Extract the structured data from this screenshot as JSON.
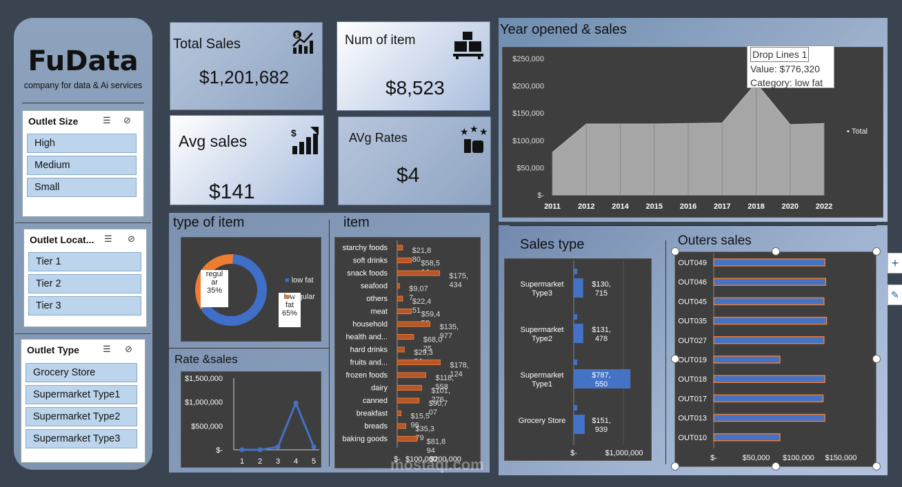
{
  "brand": {
    "name": "FuData",
    "tagline": "company for data & Ai services"
  },
  "slicers": {
    "size": {
      "title": "Outlet Size",
      "items": [
        "High",
        "Medium",
        "Small"
      ]
    },
    "location": {
      "title": "Outlet Locat...",
      "items": [
        "Tier 1",
        "Tier 2",
        "Tier 3"
      ]
    },
    "type": {
      "title": "Outlet Type",
      "items": [
        "Grocery Store",
        "Supermarket Type1",
        "Supermarket Type2",
        "Supermarket Type3"
      ]
    }
  },
  "kpis": {
    "total_sales": {
      "title": "Total Sales",
      "value": "$1,201,682",
      "icon": "sales-chart-icon"
    },
    "num_item": {
      "title": "Num of item",
      "value": "$8,523",
      "icon": "boxes-icon"
    },
    "avg_sales": {
      "title": "Avg sales",
      "value": "$141",
      "icon": "growth-icon"
    },
    "avg_rates": {
      "title": "AVg Rates",
      "value": "$4",
      "icon": "rating-icon"
    }
  },
  "year_chart": {
    "title": "Year opened & sales",
    "legend": "Total",
    "tooltip": {
      "line1": "Drop Lines 1",
      "line2": "Value:  $776,320",
      "line3": "Category: low fat"
    }
  },
  "type_chart": {
    "title": "type of item",
    "label_regular": "regul\nar\n35%",
    "label_low": "low\nfat\n65%",
    "legend_low": "low fat",
    "legend_regular": "regular"
  },
  "rate_chart": {
    "title": "Rate &sales"
  },
  "item_chart": {
    "title": "item"
  },
  "sales_type_chart": {
    "title": "Sales type"
  },
  "outers_chart": {
    "title": "Outers sales"
  },
  "watermark": {
    "text": "mostaql.com"
  },
  "chart_data": [
    {
      "type": "area",
      "title": "Year opened & sales",
      "categories": [
        "2011",
        "2012",
        "2014",
        "2015",
        "2016",
        "2017",
        "2018",
        "2020",
        "2022"
      ],
      "series": [
        {
          "name": "Total",
          "values": [
            78000,
            130000,
            130000,
            130000,
            131000,
            132000,
            205000,
            129000,
            131000
          ]
        }
      ],
      "yticks": [
        "$250,000",
        "$200,000",
        "$150,000",
        "$100,000",
        "$50,000",
        "$-"
      ],
      "ylim": [
        0,
        250000
      ],
      "legend": "right"
    },
    {
      "type": "pie",
      "title": "type of item",
      "categories": [
        "low fat",
        "regular"
      ],
      "values": [
        65,
        35
      ],
      "colors": [
        "#3f6fc9",
        "#ed7d31"
      ]
    },
    {
      "type": "line",
      "title": "Rate &sales",
      "categories": [
        "1",
        "2",
        "3",
        "4",
        "5"
      ],
      "values": [
        0,
        0,
        60000,
        980000,
        60000
      ],
      "yticks": [
        "$1,500,000",
        "$1,000,000",
        "$500,000",
        "$-"
      ],
      "ylim": [
        0,
        1500000
      ]
    },
    {
      "type": "bar",
      "title": "item",
      "categories": [
        "starchy foods",
        "soft drinks",
        "snack foods",
        "seafood",
        "others",
        "meat",
        "household",
        "health and...",
        "hard drinks",
        "fruits and...",
        "frozen foods",
        "dairy",
        "canned",
        "breakfast",
        "breads",
        "baking goods"
      ],
      "values": [
        21880,
        58514,
        175434,
        9077,
        22451,
        59452,
        135977,
        68025,
        29334,
        178124,
        118558,
        101276,
        90707,
        15596,
        35379,
        81894
      ],
      "labels": [
        "$21,8\n80",
        "$58,5\n14",
        "$175,\n434",
        "$9,07\n7",
        "$22,4\n51",
        "$59,4\n52",
        "$135,\n977",
        "$68,0\n25",
        "$29,3\n34",
        "$178,\n124",
        "$118,\n558",
        "$101,\n276",
        "$90,7\n07",
        "$15,5\n96",
        "$35,3\n79",
        "$81,8\n94"
      ],
      "xticks": [
        "$-",
        "$100,000",
        "$200,000"
      ],
      "xlim": [
        0,
        200000
      ]
    },
    {
      "type": "bar",
      "title": "Sales type",
      "categories": [
        "Supermarket Type3",
        "Supermarket Type2",
        "Supermarket Type1",
        "Grocery Store"
      ],
      "values": [
        130715,
        131478,
        787550,
        151939
      ],
      "labels": [
        "$130,\n715",
        "$131,\n478",
        "$787,\n550",
        "$151,\n939"
      ],
      "xticks": [
        "$-",
        "$1,000,000"
      ],
      "xlim": [
        0,
        1000000
      ]
    },
    {
      "type": "bar",
      "title": "Outers sales",
      "categories": [
        "OUT049",
        "OUT046",
        "OUT045",
        "OUT035",
        "OUT027",
        "OUT019",
        "OUT018",
        "OUT017",
        "OUT013",
        "OUT010"
      ],
      "values": [
        131000,
        132000,
        130000,
        133000,
        130000,
        78000,
        131000,
        129000,
        131000,
        78000
      ],
      "xticks": [
        "$-",
        "$50,000",
        "$100,000",
        "$150,000"
      ],
      "xlim": [
        0,
        170000
      ]
    }
  ]
}
